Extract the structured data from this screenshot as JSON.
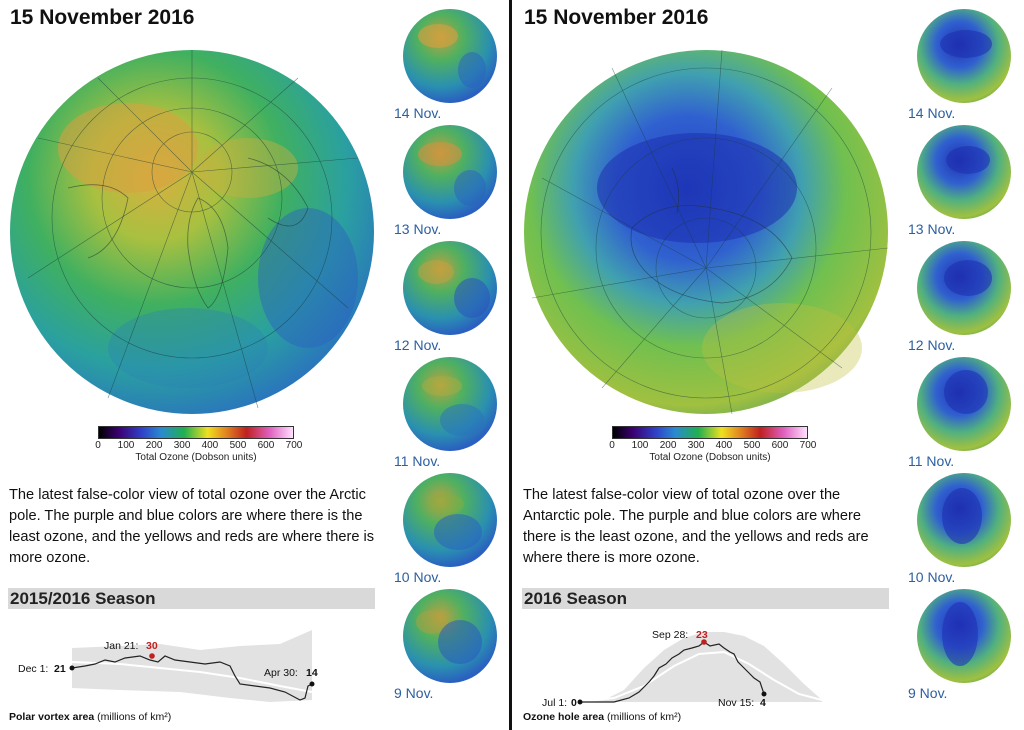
{
  "arctic": {
    "date_title": "15 November 2016",
    "colorbar": {
      "ticks": [
        "0",
        "100",
        "200",
        "300",
        "400",
        "500",
        "600",
        "700"
      ],
      "label": "Total Ozone (Dobson units)"
    },
    "description": "The latest false-color view of total ozone over the Arctic pole. The purple and blue colors are where there is the least ozone, and the yellows and reds are where there is more ozone.",
    "season_title": "2015/2016 Season",
    "thumbnails": [
      {
        "label": "14 Nov."
      },
      {
        "label": "13 Nov."
      },
      {
        "label": "12 Nov."
      },
      {
        "label": "11 Nov."
      },
      {
        "label": "10 Nov."
      },
      {
        "label": "9 Nov."
      }
    ],
    "chart": {
      "start_label": "Dec 1:",
      "start_value": "21",
      "peak_label": "Jan 21:",
      "peak_value": "30",
      "end_label": "Apr 30:",
      "end_value": "14",
      "area_label": "Polar vortex area",
      "area_units": "(millions of km²)"
    }
  },
  "antarctic": {
    "date_title": "15 November 2016",
    "colorbar": {
      "ticks": [
        "0",
        "100",
        "200",
        "300",
        "400",
        "500",
        "600",
        "700"
      ],
      "label": "Total Ozone (Dobson units)"
    },
    "description": "The latest false-color view of total ozone over the Antarctic pole. The purple and blue colors are where there is the least ozone, and the yellows and reds are where there is more ozone.",
    "season_title": "2016 Season",
    "thumbnails": [
      {
        "label": "14 Nov."
      },
      {
        "label": "13 Nov."
      },
      {
        "label": "12 Nov."
      },
      {
        "label": "11 Nov."
      },
      {
        "label": "10 Nov."
      },
      {
        "label": "9 Nov."
      }
    ],
    "chart": {
      "start_label": "Jul 1:",
      "start_value": "0",
      "peak_label": "Sep 28:",
      "peak_value": "23",
      "end_label": "Nov 15:",
      "end_value": "4",
      "area_label": "Ozone hole area",
      "area_units": "(millions of km²)"
    }
  },
  "colors": {
    "thumb_label": "#2b5fa0",
    "season_bar": "#d9d9d9",
    "peak_highlight": "#c02020"
  }
}
